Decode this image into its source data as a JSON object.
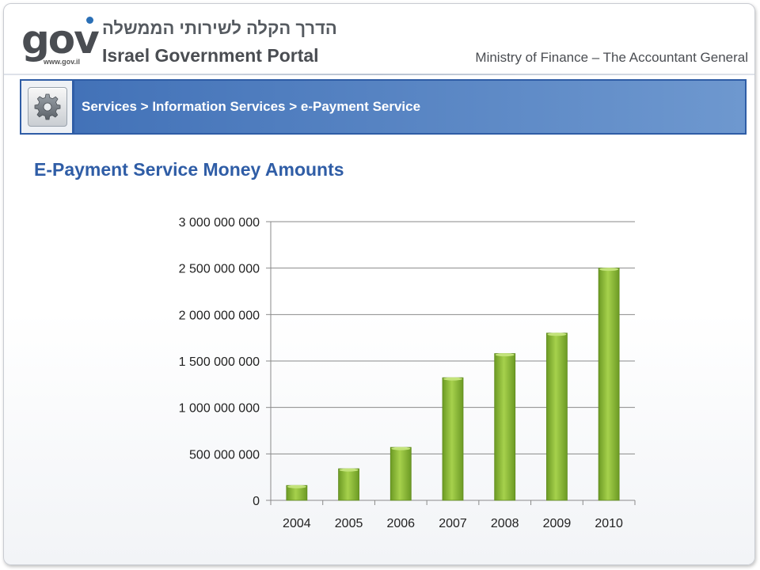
{
  "header": {
    "logo_text": "gov",
    "logo_url": "www.gov.il",
    "portal_hebrew": "הדרך הקלה לשירותי הממשלה",
    "portal_english": "Israel Government Portal",
    "ministry": "Ministry of Finance – The Accountant General"
  },
  "breadcrumb": {
    "text": "Services > Information Services > e-Payment Service",
    "icon": "gear-icon"
  },
  "page_title": "E-Payment Service Money Amounts",
  "colors": {
    "accent": "#2f5da6",
    "bar": "#8dbf3a",
    "bar_dark": "#6c9a24"
  },
  "chart_data": {
    "type": "bar",
    "title": "",
    "xlabel": "",
    "ylabel": "",
    "categories": [
      "2004",
      "2005",
      "2006",
      "2007",
      "2008",
      "2009",
      "2010"
    ],
    "values": [
      160000000,
      340000000,
      570000000,
      1320000000,
      1580000000,
      1800000000,
      2500000000
    ],
    "ylim": [
      0,
      3000000000
    ],
    "yticks": [
      0,
      500000000,
      1000000000,
      1500000000,
      2000000000,
      2500000000,
      3000000000
    ],
    "ytick_labels": [
      "0",
      "500 000 000",
      "1 000 000 000",
      "1 500 000 000",
      "2 000 000 000",
      "2 500 000 000",
      "3 000 000 000"
    ],
    "grid": true,
    "legend": "none"
  }
}
